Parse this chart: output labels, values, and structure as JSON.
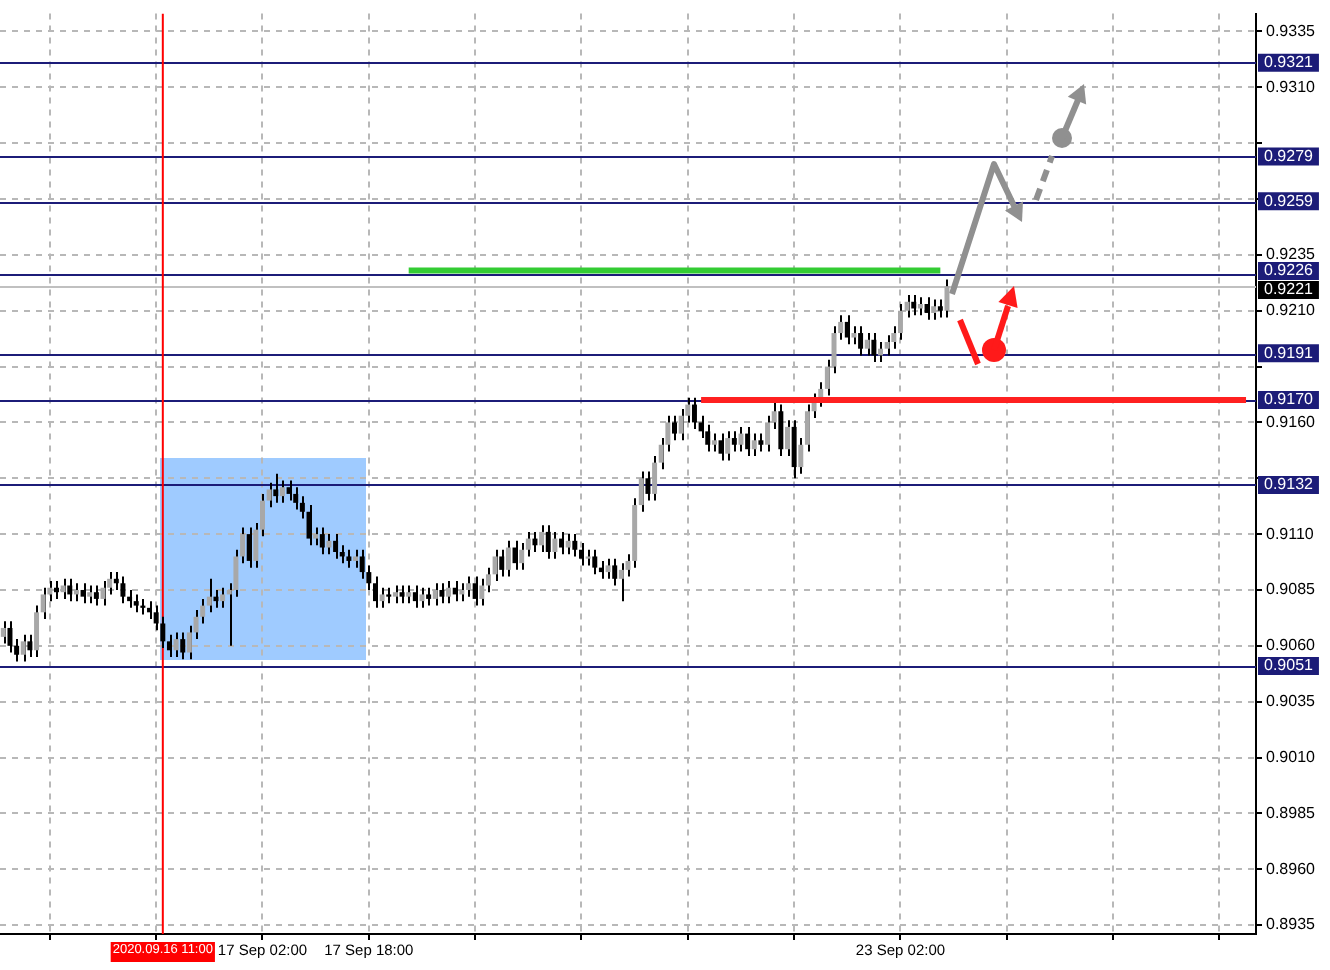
{
  "chart_data": {
    "type": "candlestick",
    "categories": [
      null,
      null,
      null,
      null,
      null,
      null,
      null,
      null,
      null,
      null,
      null,
      null,
      null,
      null,
      null,
      null,
      null,
      null,
      null,
      null,
      null,
      null,
      null,
      null,
      "2020.09.16 11:00",
      null,
      null,
      null,
      null,
      null,
      null,
      null,
      null,
      null,
      null,
      null,
      null,
      null,
      null,
      "17 Sep 02:00",
      null,
      null,
      null,
      null,
      null,
      null,
      null,
      null,
      null,
      null,
      null,
      null,
      null,
      null,
      null,
      "17 Sep 18:00",
      null,
      null,
      null,
      null,
      null,
      null,
      null,
      null,
      null,
      null,
      null,
      null,
      null,
      null,
      null,
      null,
      null,
      null,
      null,
      null,
      null,
      null,
      null,
      null,
      null,
      null,
      null,
      null,
      null,
      null,
      null,
      null,
      null,
      null,
      null,
      null,
      null,
      null,
      null,
      null,
      null,
      null,
      null,
      null,
      null,
      null,
      null,
      null,
      null,
      null,
      null,
      null,
      null,
      null,
      null,
      null,
      null,
      null,
      null,
      null,
      null,
      null,
      null,
      null,
      null,
      null,
      null,
      null,
      null,
      null,
      null,
      null,
      null,
      null,
      null,
      null,
      null,
      null,
      null,
      "23 Sep 02:00",
      null,
      null,
      null,
      null,
      null,
      null,
      null,
      null,
      null,
      null,
      null,
      null,
      null,
      null,
      null,
      null,
      null,
      null,
      null,
      null,
      null,
      null,
      null,
      null,
      null,
      null,
      null,
      null,
      null,
      null,
      null,
      null,
      null,
      null,
      null,
      null,
      null,
      null,
      null,
      null,
      null,
      null,
      null,
      null,
      null,
      null,
      null,
      null,
      null,
      null,
      null,
      null,
      null
    ],
    "ohlc": [
      [
        0.9064,
        0.9071,
        0.9061,
        0.9068
      ],
      [
        0.9068,
        0.9071,
        0.9057,
        0.906
      ],
      [
        0.906,
        0.9063,
        0.9053,
        0.9056
      ],
      [
        0.9056,
        0.9065,
        0.9053,
        0.9062
      ],
      [
        0.9062,
        0.9065,
        0.9055,
        0.9058
      ],
      [
        0.9058,
        0.9078,
        0.9055,
        0.9075
      ],
      [
        0.9075,
        0.9086,
        0.9072,
        0.9083
      ],
      [
        0.9083,
        0.9089,
        0.908,
        0.9086
      ],
      [
        0.9086,
        0.9089,
        0.9081,
        0.9084
      ],
      [
        0.9084,
        0.909,
        0.9081,
        0.9087
      ],
      [
        0.9087,
        0.909,
        0.908,
        0.9083
      ],
      [
        0.9083,
        0.9088,
        0.908,
        0.9085
      ],
      [
        0.9085,
        0.9088,
        0.9079,
        0.9082
      ],
      [
        0.9082,
        0.9087,
        0.9079,
        0.9084
      ],
      [
        0.9084,
        0.9087,
        0.9078,
        0.9081
      ],
      [
        0.9081,
        0.9089,
        0.9078,
        0.9086
      ],
      [
        0.9086,
        0.9093,
        0.9083,
        0.909
      ],
      [
        0.909,
        0.9093,
        0.9085,
        0.9088
      ],
      [
        0.9088,
        0.9091,
        0.9079,
        0.9082
      ],
      [
        0.9082,
        0.9085,
        0.9077,
        0.908
      ],
      [
        0.908,
        0.9083,
        0.9075,
        0.9078
      ],
      [
        0.9078,
        0.9081,
        0.9074,
        0.9077
      ],
      [
        0.9077,
        0.908,
        0.9072,
        0.9075
      ],
      [
        0.9075,
        0.9078,
        0.9067,
        0.907
      ],
      [
        0.907,
        0.9073,
        0.9059,
        0.9062
      ],
      [
        0.9062,
        0.9065,
        0.9055,
        0.9058
      ],
      [
        0.9058,
        0.9066,
        0.9055,
        0.9063
      ],
      [
        0.9063,
        0.9066,
        0.9054,
        0.9057
      ],
      [
        0.9057,
        0.9069,
        0.9054,
        0.9066
      ],
      [
        0.9066,
        0.9076,
        0.9063,
        0.9073
      ],
      [
        0.9073,
        0.9081,
        0.907,
        0.9078
      ],
      [
        0.9078,
        0.909,
        0.9075,
        0.9082
      ],
      [
        0.9082,
        0.9085,
        0.9077,
        0.908
      ],
      [
        0.908,
        0.9086,
        0.9077,
        0.9083
      ],
      [
        0.9083,
        0.9088,
        0.906,
        0.9085
      ],
      [
        0.9085,
        0.9103,
        0.9082,
        0.91
      ],
      [
        0.91,
        0.9113,
        0.9097,
        0.911
      ],
      [
        0.911,
        0.9113,
        0.9095,
        0.9098
      ],
      [
        0.9098,
        0.9115,
        0.9095,
        0.9112
      ],
      [
        0.9112,
        0.9128,
        0.9109,
        0.9125
      ],
      [
        0.9125,
        0.9133,
        0.9122,
        0.913
      ],
      [
        0.913,
        0.9137,
        0.9124,
        0.9127
      ],
      [
        0.9127,
        0.9134,
        0.9124,
        0.9131
      ],
      [
        0.9131,
        0.9134,
        0.9125,
        0.9128
      ],
      [
        0.9128,
        0.9131,
        0.9121,
        0.9124
      ],
      [
        0.9124,
        0.9127,
        0.9117,
        0.912
      ],
      [
        0.912,
        0.9123,
        0.9105,
        0.9108
      ],
      [
        0.9108,
        0.9113,
        0.9105,
        0.911
      ],
      [
        0.911,
        0.9113,
        0.9101,
        0.9104
      ],
      [
        0.9104,
        0.911,
        0.9101,
        0.9107
      ],
      [
        0.9107,
        0.911,
        0.9099,
        0.9102
      ],
      [
        0.9102,
        0.9105,
        0.9097,
        0.91
      ],
      [
        0.91,
        0.9103,
        0.9095,
        0.9098
      ],
      [
        0.9098,
        0.9103,
        0.9095,
        0.91
      ],
      [
        0.91,
        0.9103,
        0.909,
        0.9093
      ],
      [
        0.9093,
        0.9096,
        0.9085,
        0.9088
      ],
      [
        0.9088,
        0.9091,
        0.9077,
        0.908
      ],
      [
        0.908,
        0.9086,
        0.9077,
        0.9083
      ],
      [
        0.9083,
        0.9086,
        0.9079,
        0.9082
      ],
      [
        0.9082,
        0.9087,
        0.9079,
        0.9084
      ],
      [
        0.9084,
        0.9087,
        0.9079,
        0.9082
      ],
      [
        0.9082,
        0.9087,
        0.9079,
        0.9084
      ],
      [
        0.9084,
        0.9087,
        0.9077,
        0.908
      ],
      [
        0.908,
        0.9086,
        0.9077,
        0.9083
      ],
      [
        0.9083,
        0.9086,
        0.9078,
        0.9081
      ],
      [
        0.9081,
        0.9088,
        0.9078,
        0.9085
      ],
      [
        0.9085,
        0.9088,
        0.9079,
        0.9082
      ],
      [
        0.9082,
        0.9089,
        0.9079,
        0.9086
      ],
      [
        0.9086,
        0.9089,
        0.908,
        0.9083
      ],
      [
        0.9083,
        0.9088,
        0.908,
        0.9085
      ],
      [
        0.9085,
        0.9091,
        0.9082,
        0.9088
      ],
      [
        0.9088,
        0.9091,
        0.9078,
        0.9081
      ],
      [
        0.9081,
        0.909,
        0.9078,
        0.9087
      ],
      [
        0.9087,
        0.9095,
        0.9084,
        0.9092
      ],
      [
        0.9092,
        0.9103,
        0.9089,
        0.91
      ],
      [
        0.91,
        0.9103,
        0.9091,
        0.9094
      ],
      [
        0.9094,
        0.9107,
        0.9091,
        0.9104
      ],
      [
        0.9104,
        0.9107,
        0.9094,
        0.9097
      ],
      [
        0.9097,
        0.9106,
        0.9094,
        0.9103
      ],
      [
        0.9103,
        0.9111,
        0.91,
        0.9108
      ],
      [
        0.9108,
        0.9111,
        0.9102,
        0.9105
      ],
      [
        0.9105,
        0.9114,
        0.9102,
        0.9111
      ],
      [
        0.9111,
        0.9114,
        0.9099,
        0.9102
      ],
      [
        0.9102,
        0.9111,
        0.9099,
        0.9108
      ],
      [
        0.9108,
        0.9111,
        0.9101,
        0.9104
      ],
      [
        0.9104,
        0.911,
        0.9101,
        0.9107
      ],
      [
        0.9107,
        0.911,
        0.91,
        0.9103
      ],
      [
        0.9103,
        0.9106,
        0.9096,
        0.9099
      ],
      [
        0.9099,
        0.9103,
        0.9096,
        0.91
      ],
      [
        0.91,
        0.9103,
        0.9092,
        0.9095
      ],
      [
        0.9095,
        0.9098,
        0.909,
        0.9093
      ],
      [
        0.9093,
        0.9099,
        0.909,
        0.9096
      ],
      [
        0.9096,
        0.9099,
        0.9087,
        0.909
      ],
      [
        0.909,
        0.9097,
        0.908,
        0.9094
      ],
      [
        0.9094,
        0.9101,
        0.9091,
        0.9098
      ],
      [
        0.9098,
        0.9126,
        0.9095,
        0.9123
      ],
      [
        0.9123,
        0.9138,
        0.912,
        0.9135
      ],
      [
        0.9135,
        0.9138,
        0.9125,
        0.9128
      ],
      [
        0.9128,
        0.9145,
        0.9125,
        0.9142
      ],
      [
        0.9142,
        0.9153,
        0.9139,
        0.915
      ],
      [
        0.915,
        0.9163,
        0.9147,
        0.916
      ],
      [
        0.916,
        0.9163,
        0.9152,
        0.9155
      ],
      [
        0.9155,
        0.9166,
        0.9152,
        0.9163
      ],
      [
        0.9163,
        0.9171,
        0.916,
        0.9168
      ],
      [
        0.9168,
        0.9171,
        0.9157,
        0.916
      ],
      [
        0.916,
        0.9163,
        0.9153,
        0.9156
      ],
      [
        0.9156,
        0.9159,
        0.9147,
        0.915
      ],
      [
        0.915,
        0.9155,
        0.9147,
        0.9152
      ],
      [
        0.9152,
        0.9155,
        0.9143,
        0.9146
      ],
      [
        0.9146,
        0.9156,
        0.9143,
        0.9153
      ],
      [
        0.9153,
        0.9156,
        0.9147,
        0.915
      ],
      [
        0.915,
        0.9158,
        0.9147,
        0.9155
      ],
      [
        0.9155,
        0.9158,
        0.9145,
        0.9148
      ],
      [
        0.9148,
        0.9155,
        0.9145,
        0.9152
      ],
      [
        0.9152,
        0.9155,
        0.9147,
        0.915
      ],
      [
        0.915,
        0.9163,
        0.9147,
        0.916
      ],
      [
        0.916,
        0.917,
        0.9157,
        0.9165
      ],
      [
        0.9165,
        0.9168,
        0.9145,
        0.9148
      ],
      [
        0.9148,
        0.9161,
        0.9145,
        0.9158
      ],
      [
        0.9158,
        0.9161,
        0.9135,
        0.914
      ],
      [
        0.914,
        0.9153,
        0.9137,
        0.915
      ],
      [
        0.915,
        0.9168,
        0.9147,
        0.9165
      ],
      [
        0.9165,
        0.9173,
        0.9162,
        0.917
      ],
      [
        0.917,
        0.9178,
        0.9167,
        0.9175
      ],
      [
        0.9175,
        0.9188,
        0.9172,
        0.9185
      ],
      [
        0.9185,
        0.9203,
        0.9182,
        0.92
      ],
      [
        0.92,
        0.9208,
        0.9197,
        0.9205
      ],
      [
        0.9205,
        0.9208,
        0.9195,
        0.9198
      ],
      [
        0.9198,
        0.9203,
        0.9195,
        0.92
      ],
      [
        0.92,
        0.9203,
        0.919,
        0.9193
      ],
      [
        0.9193,
        0.92,
        0.919,
        0.9197
      ],
      [
        0.9197,
        0.92,
        0.9187,
        0.919
      ],
      [
        0.919,
        0.9196,
        0.9187,
        0.9193
      ],
      [
        0.9193,
        0.9199,
        0.919,
        0.9196
      ],
      [
        0.9196,
        0.9203,
        0.9193,
        0.92
      ],
      [
        0.92,
        0.9213,
        0.9197,
        0.921
      ],
      [
        0.921,
        0.9217,
        0.9207,
        0.9214
      ],
      [
        0.9214,
        0.9217,
        0.9208,
        0.9211
      ],
      [
        0.9211,
        0.9216,
        0.9208,
        0.9213
      ],
      [
        0.9213,
        0.9216,
        0.9206,
        0.9209
      ],
      [
        0.9209,
        0.9215,
        0.9206,
        0.9212
      ],
      [
        0.9212,
        0.9215,
        0.9207,
        0.921
      ],
      [
        0.921,
        0.9224,
        0.9207,
        0.9221
      ],
      null,
      null,
      null,
      null,
      null,
      null,
      null,
      null,
      null,
      null,
      null,
      null,
      null,
      null,
      null,
      null,
      null,
      null,
      null,
      null,
      null,
      null,
      null,
      null,
      null,
      null,
      null,
      null,
      null,
      null,
      null,
      null,
      null,
      null,
      null,
      null,
      null,
      null,
      null,
      null,
      null,
      null,
      null,
      null,
      null,
      null
    ],
    "series": [
      {
        "type": "line",
        "color": "#33cc33",
        "values": [
          null,
          null,
          null,
          null,
          null,
          null,
          null,
          null,
          null,
          null,
          null,
          null,
          null,
          null,
          null,
          null,
          null,
          null,
          null,
          null,
          null,
          null,
          null,
          null,
          null,
          null,
          null,
          null,
          null,
          null,
          null,
          null,
          null,
          null,
          null,
          null,
          null,
          null,
          null,
          null,
          null,
          null,
          null,
          null,
          null,
          null,
          null,
          null,
          null,
          null,
          null,
          null,
          null,
          null,
          null,
          null,
          null,
          null,
          null,
          null,
          null,
          0.9228,
          null,
          null,
          null,
          null,
          null,
          null,
          null,
          null,
          null,
          null,
          null,
          null,
          null,
          null,
          null,
          null,
          null,
          null,
          null,
          null,
          null,
          null,
          null,
          null,
          null,
          null,
          null,
          null,
          null,
          null,
          null,
          null,
          null,
          null,
          null,
          null,
          null,
          null,
          null,
          null,
          null,
          null,
          null,
          null,
          null,
          null,
          null,
          null,
          null,
          null,
          null,
          null,
          null,
          null,
          null,
          null,
          null,
          null,
          null,
          null,
          null,
          null,
          null,
          null,
          null,
          null,
          null,
          null,
          null,
          null,
          null,
          null,
          null,
          null,
          null,
          null,
          null,
          null,
          null,
          0.9228,
          null,
          null,
          null,
          null,
          null,
          null,
          null,
          null,
          null,
          null,
          null,
          null,
          null,
          null,
          null,
          null,
          null,
          null,
          null,
          null,
          null,
          null,
          null,
          null,
          null,
          null,
          null,
          null,
          null,
          null,
          null,
          null,
          null,
          null,
          null,
          null,
          null,
          null,
          null,
          null,
          null,
          null,
          null,
          null,
          null,
          null,
          null
        ]
      },
      {
        "type": "line",
        "color": "#ff2020",
        "values": [
          null,
          null,
          null,
          null,
          null,
          null,
          null,
          null,
          null,
          null,
          null,
          null,
          null,
          null,
          null,
          null,
          null,
          null,
          null,
          null,
          null,
          null,
          null,
          null,
          null,
          null,
          null,
          null,
          null,
          null,
          null,
          null,
          null,
          null,
          null,
          null,
          null,
          null,
          null,
          null,
          null,
          null,
          null,
          null,
          null,
          null,
          null,
          null,
          null,
          null,
          null,
          null,
          null,
          null,
          null,
          null,
          null,
          null,
          null,
          null,
          null,
          null,
          null,
          null,
          null,
          null,
          null,
          null,
          null,
          null,
          null,
          null,
          null,
          null,
          null,
          null,
          null,
          null,
          null,
          null,
          null,
          null,
          null,
          null,
          null,
          null,
          null,
          null,
          null,
          null,
          null,
          null,
          null,
          null,
          null,
          null,
          null,
          null,
          null,
          null,
          null,
          null,
          null,
          null,
          null,
          0.917,
          null,
          null,
          null,
          null,
          null,
          null,
          null,
          null,
          null,
          null,
          null,
          null,
          null,
          null,
          null,
          null,
          null,
          null,
          null,
          null,
          null,
          null,
          null,
          null,
          null,
          null,
          null,
          null,
          null,
          null,
          null,
          null,
          null,
          null,
          null,
          null,
          null,
          null,
          null,
          null,
          null,
          null,
          null,
          null,
          null,
          null,
          null,
          null,
          null,
          null,
          null,
          null,
          null,
          null,
          null,
          null,
          null,
          null,
          null,
          null,
          null,
          null,
          null,
          null,
          null,
          null,
          null,
          null,
          null,
          null,
          null,
          null,
          null,
          null,
          null,
          null,
          null,
          null,
          null,
          null,
          null,
          0.917,
          null
        ]
      }
    ],
    "ylim": [
      0.8931,
      0.9343
    ],
    "yticks": [
      0.8935,
      {
        "value": 0.896,
        "label": "0.8960"
      },
      0.8985,
      {
        "value": 0.901,
        "label": "0.9010"
      },
      0.9035,
      {
        "value": 0.906,
        "label": "0.9060"
      },
      0.9085,
      {
        "value": 0.911,
        "label": "0.9110"
      },
      {
        "value": 0.9135,
        "label": null
      },
      {
        "value": 0.916,
        "label": "0.9160"
      },
      {
        "value": 0.9185,
        "label": null
      },
      {
        "value": 0.921,
        "label": "0.9210"
      },
      0.9235,
      {
        "value": 0.926,
        "label": null
      },
      {
        "value": 0.9285,
        "label": null
      },
      {
        "value": 0.931,
        "label": "0.9310"
      },
      0.9335
    ],
    "ref_lines": [
      {
        "axis": "y",
        "value": 0.9321,
        "label": "0.9321",
        "color": "#1c1c78"
      },
      {
        "axis": "y",
        "value": 0.9279,
        "label": "0.9279",
        "color": "#1c1c78"
      },
      {
        "axis": "y",
        "value": 0.9259,
        "label": "0.9259",
        "color": "#1c1c78"
      },
      {
        "axis": "y",
        "value": 0.9226,
        "label": "0.9226",
        "color": "#1c1c78"
      },
      {
        "axis": "y",
        "value": 0.9221,
        "label": "0.9221",
        "color": "#c0c0c0"
      },
      {
        "axis": "y",
        "value": 0.9191,
        "label": "0.9191",
        "color": "#1c1c78"
      },
      {
        "axis": "y",
        "value": 0.917,
        "label": "0.9170",
        "color": "#1c1c78"
      },
      {
        "axis": "y",
        "value": 0.9132,
        "label": "0.9132",
        "color": "#1c1c78"
      },
      {
        "axis": "y",
        "value": 0.9051,
        "label": "0.9051",
        "color": "#1c1c78"
      },
      {
        "axis": "x",
        "value": "2020.09.16 11:00",
        "color": "#ff0000"
      }
    ],
    "grid": true,
    "legend": false
  }
}
